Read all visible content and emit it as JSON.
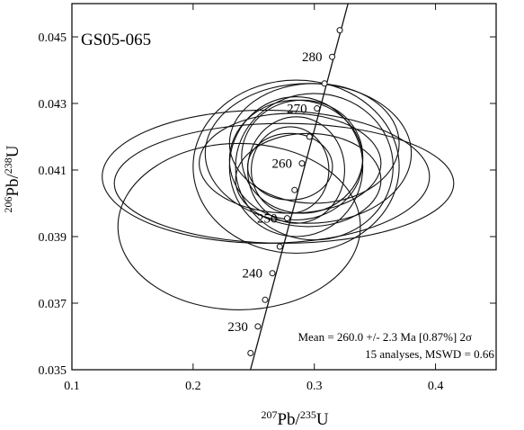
{
  "chart_data": {
    "type": "scatter",
    "title": "GS05-065",
    "xlabel": {
      "sup1": "207",
      "main1": "Pb/",
      "sup2": "235",
      "main2": "U"
    },
    "ylabel": {
      "sup1": "206",
      "main1": "Pb/",
      "sup2": "238",
      "main2": "U"
    },
    "xlim": [
      0.1,
      0.45
    ],
    "ylim": [
      0.035,
      0.046
    ],
    "x_ticks": [
      0.1,
      0.2,
      0.3,
      0.4
    ],
    "x_tick_labels": [
      "0.1",
      "0.2",
      "0.3",
      "0.4"
    ],
    "y_ticks": [
      0.035,
      0.037,
      0.039,
      0.041,
      0.043,
      0.045
    ],
    "y_tick_labels": [
      "0.035",
      "0.037",
      "0.039",
      "0.041",
      "0.043",
      "0.045"
    ],
    "concordia": {
      "curve": [
        {
          "x": 0.24,
          "y": 0.034
        },
        {
          "x": 0.33,
          "y": 0.0463
        }
      ],
      "age_markers": [
        {
          "age": 225,
          "x": 0.2474,
          "y": 0.0355
        },
        {
          "age": 230,
          "x": 0.2534,
          "y": 0.0363
        },
        {
          "age": 235,
          "x": 0.2594,
          "y": 0.0371
        },
        {
          "age": 240,
          "x": 0.2654,
          "y": 0.0379
        },
        {
          "age": 245,
          "x": 0.2715,
          "y": 0.0387
        },
        {
          "age": 250,
          "x": 0.2776,
          "y": 0.03955
        },
        {
          "age": 255,
          "x": 0.2837,
          "y": 0.0404
        },
        {
          "age": 260,
          "x": 0.2898,
          "y": 0.0412
        },
        {
          "age": 265,
          "x": 0.296,
          "y": 0.042
        },
        {
          "age": 270,
          "x": 0.3022,
          "y": 0.04285
        },
        {
          "age": 275,
          "x": 0.3084,
          "y": 0.0436
        },
        {
          "age": 280,
          "x": 0.3147,
          "y": 0.0444
        },
        {
          "age": 285,
          "x": 0.321,
          "y": 0.0452
        }
      ],
      "age_labels": [
        {
          "text": "230",
          "age": 230,
          "x": 0.2534,
          "y": 0.0363
        },
        {
          "text": "240",
          "age": 240,
          "x": 0.2654,
          "y": 0.0379
        },
        {
          "text": "250",
          "age": 250,
          "x": 0.2776,
          "y": 0.03955
        },
        {
          "text": "260",
          "age": 260,
          "x": 0.2898,
          "y": 0.0412
        },
        {
          "text": "270",
          "age": 270,
          "x": 0.3022,
          "y": 0.04285
        },
        {
          "text": "280",
          "age": 280,
          "x": 0.3147,
          "y": 0.0444
        }
      ]
    },
    "ellipses": [
      {
        "cx": 0.285,
        "cy": 0.0411,
        "rx": 0.055,
        "ry": 0.0021
      },
      {
        "cx": 0.26,
        "cy": 0.0408,
        "rx": 0.135,
        "ry": 0.002
      },
      {
        "cx": 0.275,
        "cy": 0.0406,
        "rx": 0.14,
        "ry": 0.0018
      },
      {
        "cx": 0.238,
        "cy": 0.0393,
        "rx": 0.1,
        "ry": 0.0025
      },
      {
        "cx": 0.28,
        "cy": 0.0412,
        "rx": 0.075,
        "ry": 0.0015
      },
      {
        "cx": 0.295,
        "cy": 0.0415,
        "rx": 0.085,
        "ry": 0.0021
      },
      {
        "cx": 0.3,
        "cy": 0.0411,
        "rx": 0.065,
        "ry": 0.0022
      },
      {
        "cx": 0.285,
        "cy": 0.0411,
        "rx": 0.085,
        "ry": 0.0026
      },
      {
        "cx": 0.285,
        "cy": 0.0413,
        "rx": 0.055,
        "ry": 0.0018
      },
      {
        "cx": 0.285,
        "cy": 0.041,
        "rx": 0.04,
        "ry": 0.0016
      },
      {
        "cx": 0.28,
        "cy": 0.041,
        "rx": 0.032,
        "ry": 0.0013
      },
      {
        "cx": 0.28,
        "cy": 0.0411,
        "rx": 0.035,
        "ry": 0.001
      },
      {
        "cx": 0.3,
        "cy": 0.0418,
        "rx": 0.07,
        "ry": 0.0018
      },
      {
        "cx": 0.29,
        "cy": 0.0414,
        "rx": 0.05,
        "ry": 0.0017
      },
      {
        "cx": 0.295,
        "cy": 0.0407,
        "rx": 0.06,
        "ry": 0.0014
      }
    ],
    "annotations": [
      "Mean = 260.0 +/- 2.3 Ma [0.87%] 2σ",
      "15 analyses, MSWD = 0.66"
    ]
  }
}
